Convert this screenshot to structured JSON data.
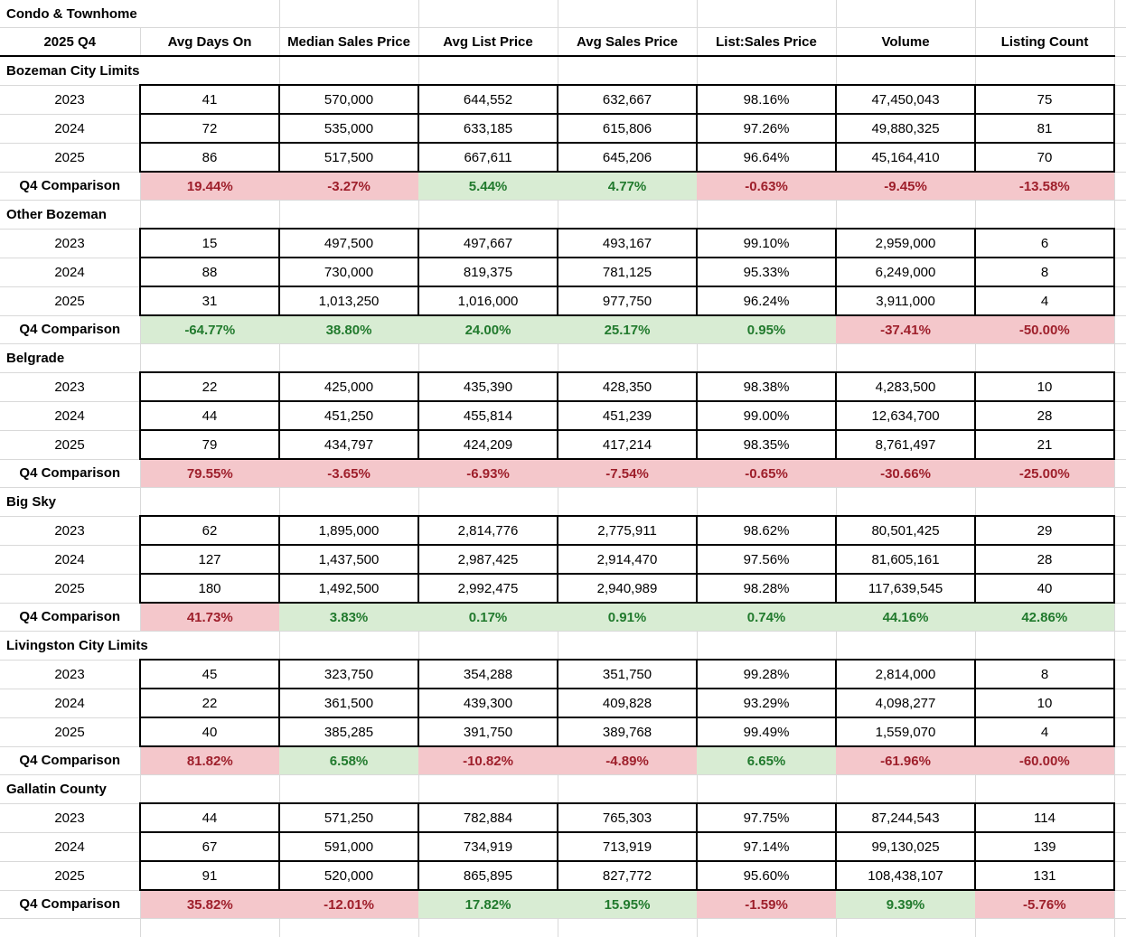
{
  "table": {
    "title": "Condo & Townhome",
    "period": "2025 Q4",
    "comparison_label": "Q4 Comparison",
    "columns": [
      "Avg Days On",
      "Median Sales Price",
      "Avg List Price",
      "Avg Sales Price",
      "List:Sales Price",
      "Volume",
      "Listing Count"
    ],
    "sections": [
      {
        "name": "Bozeman City Limits",
        "rows": [
          {
            "year": "2023",
            "values": [
              "41",
              "570,000",
              "644,552",
              "632,667",
              "98.16%",
              "47,450,043",
              "75"
            ]
          },
          {
            "year": "2024",
            "values": [
              "72",
              "535,000",
              "633,185",
              "615,806",
              "97.26%",
              "49,880,325",
              "81"
            ]
          },
          {
            "year": "2025",
            "values": [
              "86",
              "517,500",
              "667,611",
              "645,206",
              "96.64%",
              "45,164,410",
              "70"
            ]
          }
        ],
        "comparison": [
          {
            "value": "19.44%",
            "trend": "bad"
          },
          {
            "value": "-3.27%",
            "trend": "bad"
          },
          {
            "value": "5.44%",
            "trend": "good"
          },
          {
            "value": "4.77%",
            "trend": "good"
          },
          {
            "value": "-0.63%",
            "trend": "bad"
          },
          {
            "value": "-9.45%",
            "trend": "bad"
          },
          {
            "value": "-13.58%",
            "trend": "bad"
          }
        ]
      },
      {
        "name": "Other Bozeman",
        "rows": [
          {
            "year": "2023",
            "values": [
              "15",
              "497,500",
              "497,667",
              "493,167",
              "99.10%",
              "2,959,000",
              "6"
            ]
          },
          {
            "year": "2024",
            "values": [
              "88",
              "730,000",
              "819,375",
              "781,125",
              "95.33%",
              "6,249,000",
              "8"
            ]
          },
          {
            "year": "2025",
            "values": [
              "31",
              "1,013,250",
              "1,016,000",
              "977,750",
              "96.24%",
              "3,911,000",
              "4"
            ]
          }
        ],
        "comparison": [
          {
            "value": "-64.77%",
            "trend": "good"
          },
          {
            "value": "38.80%",
            "trend": "good"
          },
          {
            "value": "24.00%",
            "trend": "good"
          },
          {
            "value": "25.17%",
            "trend": "good"
          },
          {
            "value": "0.95%",
            "trend": "good"
          },
          {
            "value": "-37.41%",
            "trend": "bad"
          },
          {
            "value": "-50.00%",
            "trend": "bad"
          }
        ]
      },
      {
        "name": "Belgrade",
        "rows": [
          {
            "year": "2023",
            "values": [
              "22",
              "425,000",
              "435,390",
              "428,350",
              "98.38%",
              "4,283,500",
              "10"
            ]
          },
          {
            "year": "2024",
            "values": [
              "44",
              "451,250",
              "455,814",
              "451,239",
              "99.00%",
              "12,634,700",
              "28"
            ]
          },
          {
            "year": "2025",
            "values": [
              "79",
              "434,797",
              "424,209",
              "417,214",
              "98.35%",
              "8,761,497",
              "21"
            ]
          }
        ],
        "comparison": [
          {
            "value": "79.55%",
            "trend": "bad"
          },
          {
            "value": "-3.65%",
            "trend": "bad"
          },
          {
            "value": "-6.93%",
            "trend": "bad"
          },
          {
            "value": "-7.54%",
            "trend": "bad"
          },
          {
            "value": "-0.65%",
            "trend": "bad"
          },
          {
            "value": "-30.66%",
            "trend": "bad"
          },
          {
            "value": "-25.00%",
            "trend": "bad"
          }
        ]
      },
      {
        "name": "Big Sky",
        "rows": [
          {
            "year": "2023",
            "values": [
              "62",
              "1,895,000",
              "2,814,776",
              "2,775,911",
              "98.62%",
              "80,501,425",
              "29"
            ]
          },
          {
            "year": "2024",
            "values": [
              "127",
              "1,437,500",
              "2,987,425",
              "2,914,470",
              "97.56%",
              "81,605,161",
              "28"
            ]
          },
          {
            "year": "2025",
            "values": [
              "180",
              "1,492,500",
              "2,992,475",
              "2,940,989",
              "98.28%",
              "117,639,545",
              "40"
            ]
          }
        ],
        "comparison": [
          {
            "value": "41.73%",
            "trend": "bad"
          },
          {
            "value": "3.83%",
            "trend": "good"
          },
          {
            "value": "0.17%",
            "trend": "good"
          },
          {
            "value": "0.91%",
            "trend": "good"
          },
          {
            "value": "0.74%",
            "trend": "good"
          },
          {
            "value": "44.16%",
            "trend": "good"
          },
          {
            "value": "42.86%",
            "trend": "good"
          }
        ]
      },
      {
        "name": "Livingston City Limits",
        "rows": [
          {
            "year": "2023",
            "values": [
              "45",
              "323,750",
              "354,288",
              "351,750",
              "99.28%",
              "2,814,000",
              "8"
            ]
          },
          {
            "year": "2024",
            "values": [
              "22",
              "361,500",
              "439,300",
              "409,828",
              "93.29%",
              "4,098,277",
              "10"
            ]
          },
          {
            "year": "2025",
            "values": [
              "40",
              "385,285",
              "391,750",
              "389,768",
              "99.49%",
              "1,559,070",
              "4"
            ]
          }
        ],
        "comparison": [
          {
            "value": "81.82%",
            "trend": "bad"
          },
          {
            "value": "6.58%",
            "trend": "good"
          },
          {
            "value": "-10.82%",
            "trend": "bad"
          },
          {
            "value": "-4.89%",
            "trend": "bad"
          },
          {
            "value": "6.65%",
            "trend": "good"
          },
          {
            "value": "-61.96%",
            "trend": "bad"
          },
          {
            "value": "-60.00%",
            "trend": "bad"
          }
        ]
      },
      {
        "name": "Gallatin County",
        "rows": [
          {
            "year": "2023",
            "values": [
              "44",
              "571,250",
              "782,884",
              "765,303",
              "97.75%",
              "87,244,543",
              "114"
            ]
          },
          {
            "year": "2024",
            "values": [
              "67",
              "591,000",
              "734,919",
              "713,919",
              "97.14%",
              "99,130,025",
              "139"
            ]
          },
          {
            "year": "2025",
            "values": [
              "91",
              "520,000",
              "865,895",
              "827,772",
              "95.60%",
              "108,438,107",
              "131"
            ]
          }
        ],
        "comparison": [
          {
            "value": "35.82%",
            "trend": "bad"
          },
          {
            "value": "-12.01%",
            "trend": "bad"
          },
          {
            "value": "17.82%",
            "trend": "good"
          },
          {
            "value": "15.95%",
            "trend": "good"
          },
          {
            "value": "-1.59%",
            "trend": "bad"
          },
          {
            "value": "9.39%",
            "trend": "good"
          },
          {
            "value": "-5.76%",
            "trend": "bad"
          }
        ]
      }
    ],
    "colors": {
      "good_fill": "#d8ecd3",
      "good_text": "#217a2d",
      "bad_fill": "#f4c7cb",
      "bad_text": "#9e1f2b",
      "gridline": "#d9d9d9",
      "cell_border": "#000000"
    }
  }
}
